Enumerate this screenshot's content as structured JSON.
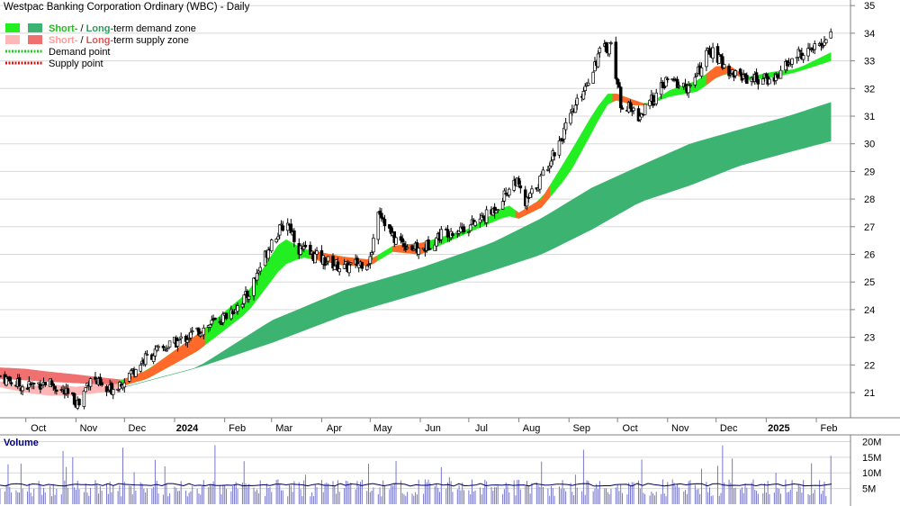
{
  "title": "Westpac Banking Corporation Ordinary (WBC) - Daily",
  "colors": {
    "short_demand": "#22ee22",
    "long_demand": "#3cb371",
    "short_supply": "#ffb6b6",
    "long_supply": "#f07070",
    "supply_band": "#ff6a2a",
    "volume_bar": "#7777cc",
    "volume_avg": "#000066",
    "grid": "#d8d8d8",
    "volume_label": "#000080"
  },
  "legend": [
    {
      "prefix": "Short-",
      "sep": " / ",
      "mid": "Long-",
      "suffix": "term demand zone",
      "short_color": "#22ee22",
      "long_color": "#3cb371",
      "kind": "box"
    },
    {
      "prefix": "Short-",
      "sep": " / ",
      "mid": "Long-",
      "suffix": "term supply zone",
      "short_color": "#ffb6b6",
      "long_color": "#f07070",
      "kind": "box"
    },
    {
      "label": "Demand point",
      "color": "#22cc22",
      "kind": "dots"
    },
    {
      "label": "Supply point",
      "color": "#dd1111",
      "kind": "dots"
    }
  ],
  "chart_data": {
    "type": "candlestick",
    "title": "Westpac Banking Corporation Ordinary (WBC) - Daily",
    "x_tick_labels": [
      "Oct",
      "Nov",
      "Dec",
      "2024",
      "Feb",
      "Mar",
      "Apr",
      "May",
      "Jun",
      "Jul",
      "Aug",
      "Sep",
      "Oct",
      "Nov",
      "Dec",
      "2025",
      "Feb"
    ],
    "y_tick_labels": [
      "21",
      "22",
      "23",
      "24",
      "25",
      "26",
      "27",
      "28",
      "29",
      "30",
      "31",
      "32",
      "33",
      "34",
      "35"
    ],
    "ylim": [
      20.5,
      35.3
    ],
    "volume_axis_label": "Volume",
    "volume_tick_labels": [
      "20M",
      "15M",
      "10M",
      "5M"
    ],
    "volume_ylim": [
      0,
      21
    ],
    "close_path": {
      "x": [
        "2023-09-15",
        "2023-09-30",
        "2023-10-15",
        "2023-11-03",
        "2023-11-10",
        "2023-11-20",
        "2023-12-01",
        "2023-12-15",
        "2024-01-05",
        "2024-01-31",
        "2024-02-15",
        "2024-03-01",
        "2024-03-11",
        "2024-03-18",
        "2024-04-02",
        "2024-04-15",
        "2024-05-01",
        "2024-05-06",
        "2024-05-15",
        "2024-06-01",
        "2024-06-15",
        "2024-07-01",
        "2024-07-15",
        "2024-07-30",
        "2024-08-05",
        "2024-08-15",
        "2024-09-01",
        "2024-09-20",
        "2024-09-27",
        "2024-10-03",
        "2024-10-15",
        "2024-11-01",
        "2024-11-15",
        "2024-11-27",
        "2024-12-10",
        "2024-12-20",
        "2025-01-05",
        "2025-01-20",
        "2025-02-03",
        "2025-02-10"
      ],
      "y": [
        21.6,
        21.2,
        21.4,
        20.6,
        21.6,
        21.0,
        21.5,
        22.3,
        22.9,
        23.7,
        24.5,
        26.5,
        27.2,
        26.2,
        25.8,
        25.5,
        25.8,
        27.7,
        26.6,
        26.1,
        26.8,
        27.0,
        27.5,
        28.7,
        27.8,
        28.8,
        30.8,
        33.3,
        33.6,
        31.5,
        31.0,
        32.3,
        32.0,
        33.4,
        32.6,
        32.4,
        32.3,
        33.2,
        33.5,
        34.1
      ]
    },
    "short_term_demand_zone": {
      "x": [
        "2023-11-27",
        "2023-12-15",
        "2024-01-15",
        "2024-02-15",
        "2024-03-08",
        "2024-03-20",
        "2024-04-15",
        "2024-05-01",
        "2024-05-15",
        "2024-06-01",
        "2024-07-01",
        "2024-07-25",
        "2024-08-01",
        "2024-08-15",
        "2024-09-01",
        "2024-09-15",
        "2024-09-24",
        "2024-10-01",
        "2024-10-10",
        "2024-10-20",
        "2024-11-01",
        "2024-11-20",
        "2024-12-01",
        "2024-12-10",
        "2024-12-20",
        "2025-01-05",
        "2025-01-20",
        "2025-02-10"
      ],
      "low": [
        21.2,
        21.5,
        22.5,
        23.9,
        25.6,
        25.9,
        25.6,
        25.6,
        26.1,
        26.0,
        26.8,
        27.4,
        27.3,
        27.7,
        28.9,
        30.4,
        31.4,
        31.6,
        31.4,
        31.4,
        31.7,
        31.9,
        32.4,
        32.6,
        32.3,
        32.4,
        32.6,
        33.0
      ],
      "high": [
        21.4,
        21.8,
        23.1,
        24.6,
        26.6,
        26.2,
        25.9,
        25.8,
        26.3,
        26.4,
        26.9,
        27.8,
        27.5,
        28.0,
        29.6,
        31.0,
        31.8,
        31.8,
        31.6,
        31.4,
        31.9,
        32.3,
        32.8,
        32.8,
        32.4,
        32.6,
        32.7,
        33.3
      ]
    },
    "short_term_supply_zone": {
      "x": [
        "2023-09-15",
        "2023-10-01",
        "2023-10-15",
        "2023-11-01",
        "2023-11-15",
        "2023-11-27"
      ],
      "low": [
        21.2,
        21.0,
        20.9,
        20.9,
        21.0,
        21.1
      ],
      "high": [
        21.4,
        21.2,
        21.3,
        21.2,
        21.3,
        21.3
      ]
    },
    "long_term_demand_zone": {
      "x": [
        "2023-12-01",
        "2024-01-15",
        "2024-03-01",
        "2024-04-15",
        "2024-06-01",
        "2024-07-15",
        "2024-08-15",
        "2024-09-15",
        "2024-10-15",
        "2024-11-15",
        "2024-12-15",
        "2025-01-15",
        "2025-02-10"
      ],
      "low": [
        21.2,
        21.9,
        22.8,
        23.8,
        24.6,
        25.4,
        26.0,
        26.9,
        27.9,
        28.5,
        29.2,
        29.7,
        30.1
      ],
      "high": [
        21.2,
        21.9,
        23.6,
        24.7,
        25.5,
        26.4,
        27.3,
        28.4,
        29.2,
        30.0,
        30.5,
        31.0,
        31.5
      ]
    },
    "long_term_supply_zone": {
      "x": [
        "2023-09-15",
        "2023-10-01",
        "2023-10-15",
        "2023-11-01",
        "2023-11-15",
        "2023-12-01"
      ],
      "low": [
        21.5,
        21.45,
        21.4,
        21.35,
        21.3,
        21.25
      ],
      "high": [
        21.9,
        21.85,
        21.75,
        21.65,
        21.55,
        21.45
      ]
    },
    "volume_average": 6.2,
    "legend_placement": "top-left",
    "grid": true
  }
}
